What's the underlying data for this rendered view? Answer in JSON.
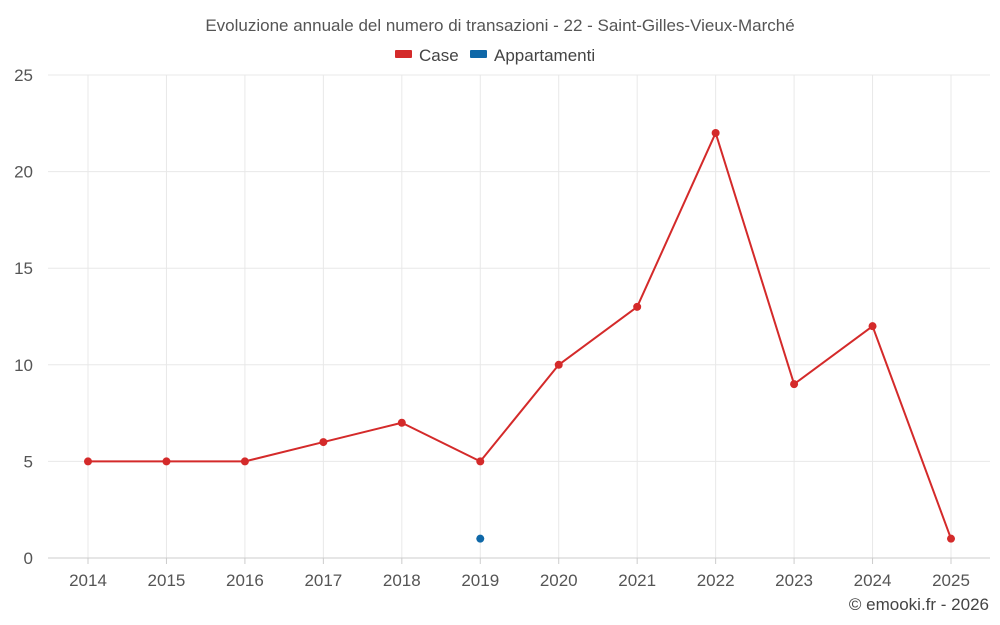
{
  "chart_data": {
    "type": "line",
    "title": "Evoluzione annuale del numero di transazioni - 22 - Saint-Gilles-Vieux-Marché",
    "xlabel": "",
    "ylabel": "",
    "categories": [
      "2014",
      "2015",
      "2016",
      "2017",
      "2018",
      "2019",
      "2020",
      "2021",
      "2022",
      "2023",
      "2024",
      "2025"
    ],
    "ylim": [
      0,
      25
    ],
    "yticks": [
      0,
      5,
      10,
      15,
      20,
      25
    ],
    "grid": true,
    "legend_position": "top-center",
    "series": [
      {
        "name": "Case",
        "color": "#d42a2a",
        "values": [
          5,
          5,
          5,
          6,
          7,
          5,
          10,
          13,
          22,
          9,
          12,
          1
        ]
      },
      {
        "name": "Appartamenti",
        "color": "#0f68a8",
        "values": [
          null,
          null,
          null,
          null,
          null,
          1,
          null,
          null,
          null,
          null,
          null,
          null
        ]
      }
    ]
  },
  "credit": "© emooki.fr - 2026"
}
